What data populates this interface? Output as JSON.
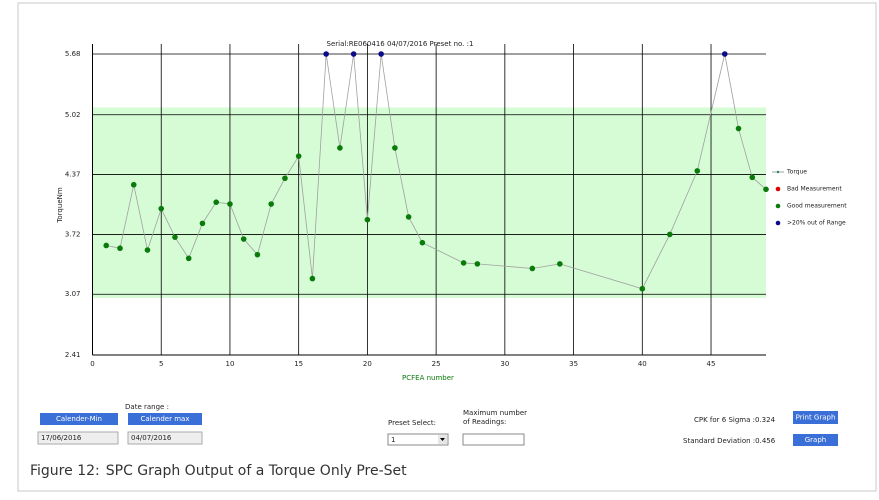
{
  "chart_data": {
    "type": "line",
    "title": "Serial:RE060416     04/07/2016 Preset no. :1",
    "x_label": "PCFEA number",
    "y_label": "TorqueNm",
    "x": [
      1,
      2,
      3,
      4,
      5,
      6,
      7,
      8,
      9,
      10,
      11,
      12,
      13,
      14,
      15,
      16,
      17,
      18,
      19,
      20,
      21,
      22,
      23,
      24,
      27,
      28,
      32,
      34,
      40,
      42,
      44,
      46,
      47,
      48,
      49
    ],
    "series": [
      {
        "name": "Torque",
        "color": "#a0a0a0",
        "values": [
          3.6,
          3.57,
          4.26,
          3.55,
          4.0,
          3.69,
          3.46,
          3.84,
          4.07,
          4.05,
          3.67,
          3.5,
          4.05,
          4.33,
          4.57,
          3.24,
          5.68,
          4.66,
          5.68,
          3.88,
          5.68,
          4.66,
          3.91,
          3.63,
          3.41,
          3.4,
          3.35,
          3.4,
          3.13,
          3.72,
          4.41,
          5.68,
          4.87,
          4.34,
          4.21
        ],
        "point_colors": [
          "#0a7a0a",
          "#0a7a0a",
          "#0a7a0a",
          "#0a7a0a",
          "#0a7a0a",
          "#0a7a0a",
          "#0a7a0a",
          "#0a7a0a",
          "#0a7a0a",
          "#0a7a0a",
          "#0a7a0a",
          "#0a7a0a",
          "#0a7a0a",
          "#0a7a0a",
          "#0a7a0a",
          "#0a7a0a",
          "#0a0a8a",
          "#0a7a0a",
          "#0a0a8a",
          "#0a7a0a",
          "#0a0a8a",
          "#0a7a0a",
          "#0a7a0a",
          "#0a7a0a",
          "#0a7a0a",
          "#0a7a0a",
          "#0a7a0a",
          "#0a7a0a",
          "#0a7a0a",
          "#0a7a0a",
          "#0a7a0a",
          "#0a0a8a",
          "#0a7a0a",
          "#0a7a0a",
          "#0a7a0a"
        ]
      }
    ],
    "legend_items": [
      {
        "label": "Bad Measurement",
        "color": "#dd0000"
      },
      {
        "label": "Good measurement",
        "color": "#0a7a0a"
      },
      {
        "label": ">20% out of Range",
        "color": "#0a0a8a"
      }
    ],
    "band": [
      3.03,
      5.1
    ],
    "band_color": "#d6fcd6",
    "xlim": [
      0,
      49
    ],
    "xticks": [
      0,
      5,
      10,
      15,
      20,
      25,
      30,
      35,
      40,
      45
    ],
    "ylim": [
      2.41,
      5.68
    ],
    "yticks": [
      2.41,
      3.07,
      3.72,
      4.37,
      5.02,
      5.68
    ],
    "grid": true
  },
  "controls": {
    "date_range": "Date range :",
    "btn_min": "Calender-Min",
    "btn_max": "Calender max",
    "date_min": "17/06/2016",
    "date_max": "04/07/2016",
    "preset_label": "Preset Select:",
    "preset_value": "1",
    "max_label_1": "Maximum  number",
    "max_label_2": "of Readings:",
    "cpk": "CPK for 6 Sigma :0.324",
    "std": "Standard Deviation :0.456",
    "btn_print": "Print Graph",
    "btn_graph": "Graph"
  },
  "caption": {
    "label": "Figure 12:",
    "text": "SPC Graph Output of a Torque Only Pre-Set"
  }
}
